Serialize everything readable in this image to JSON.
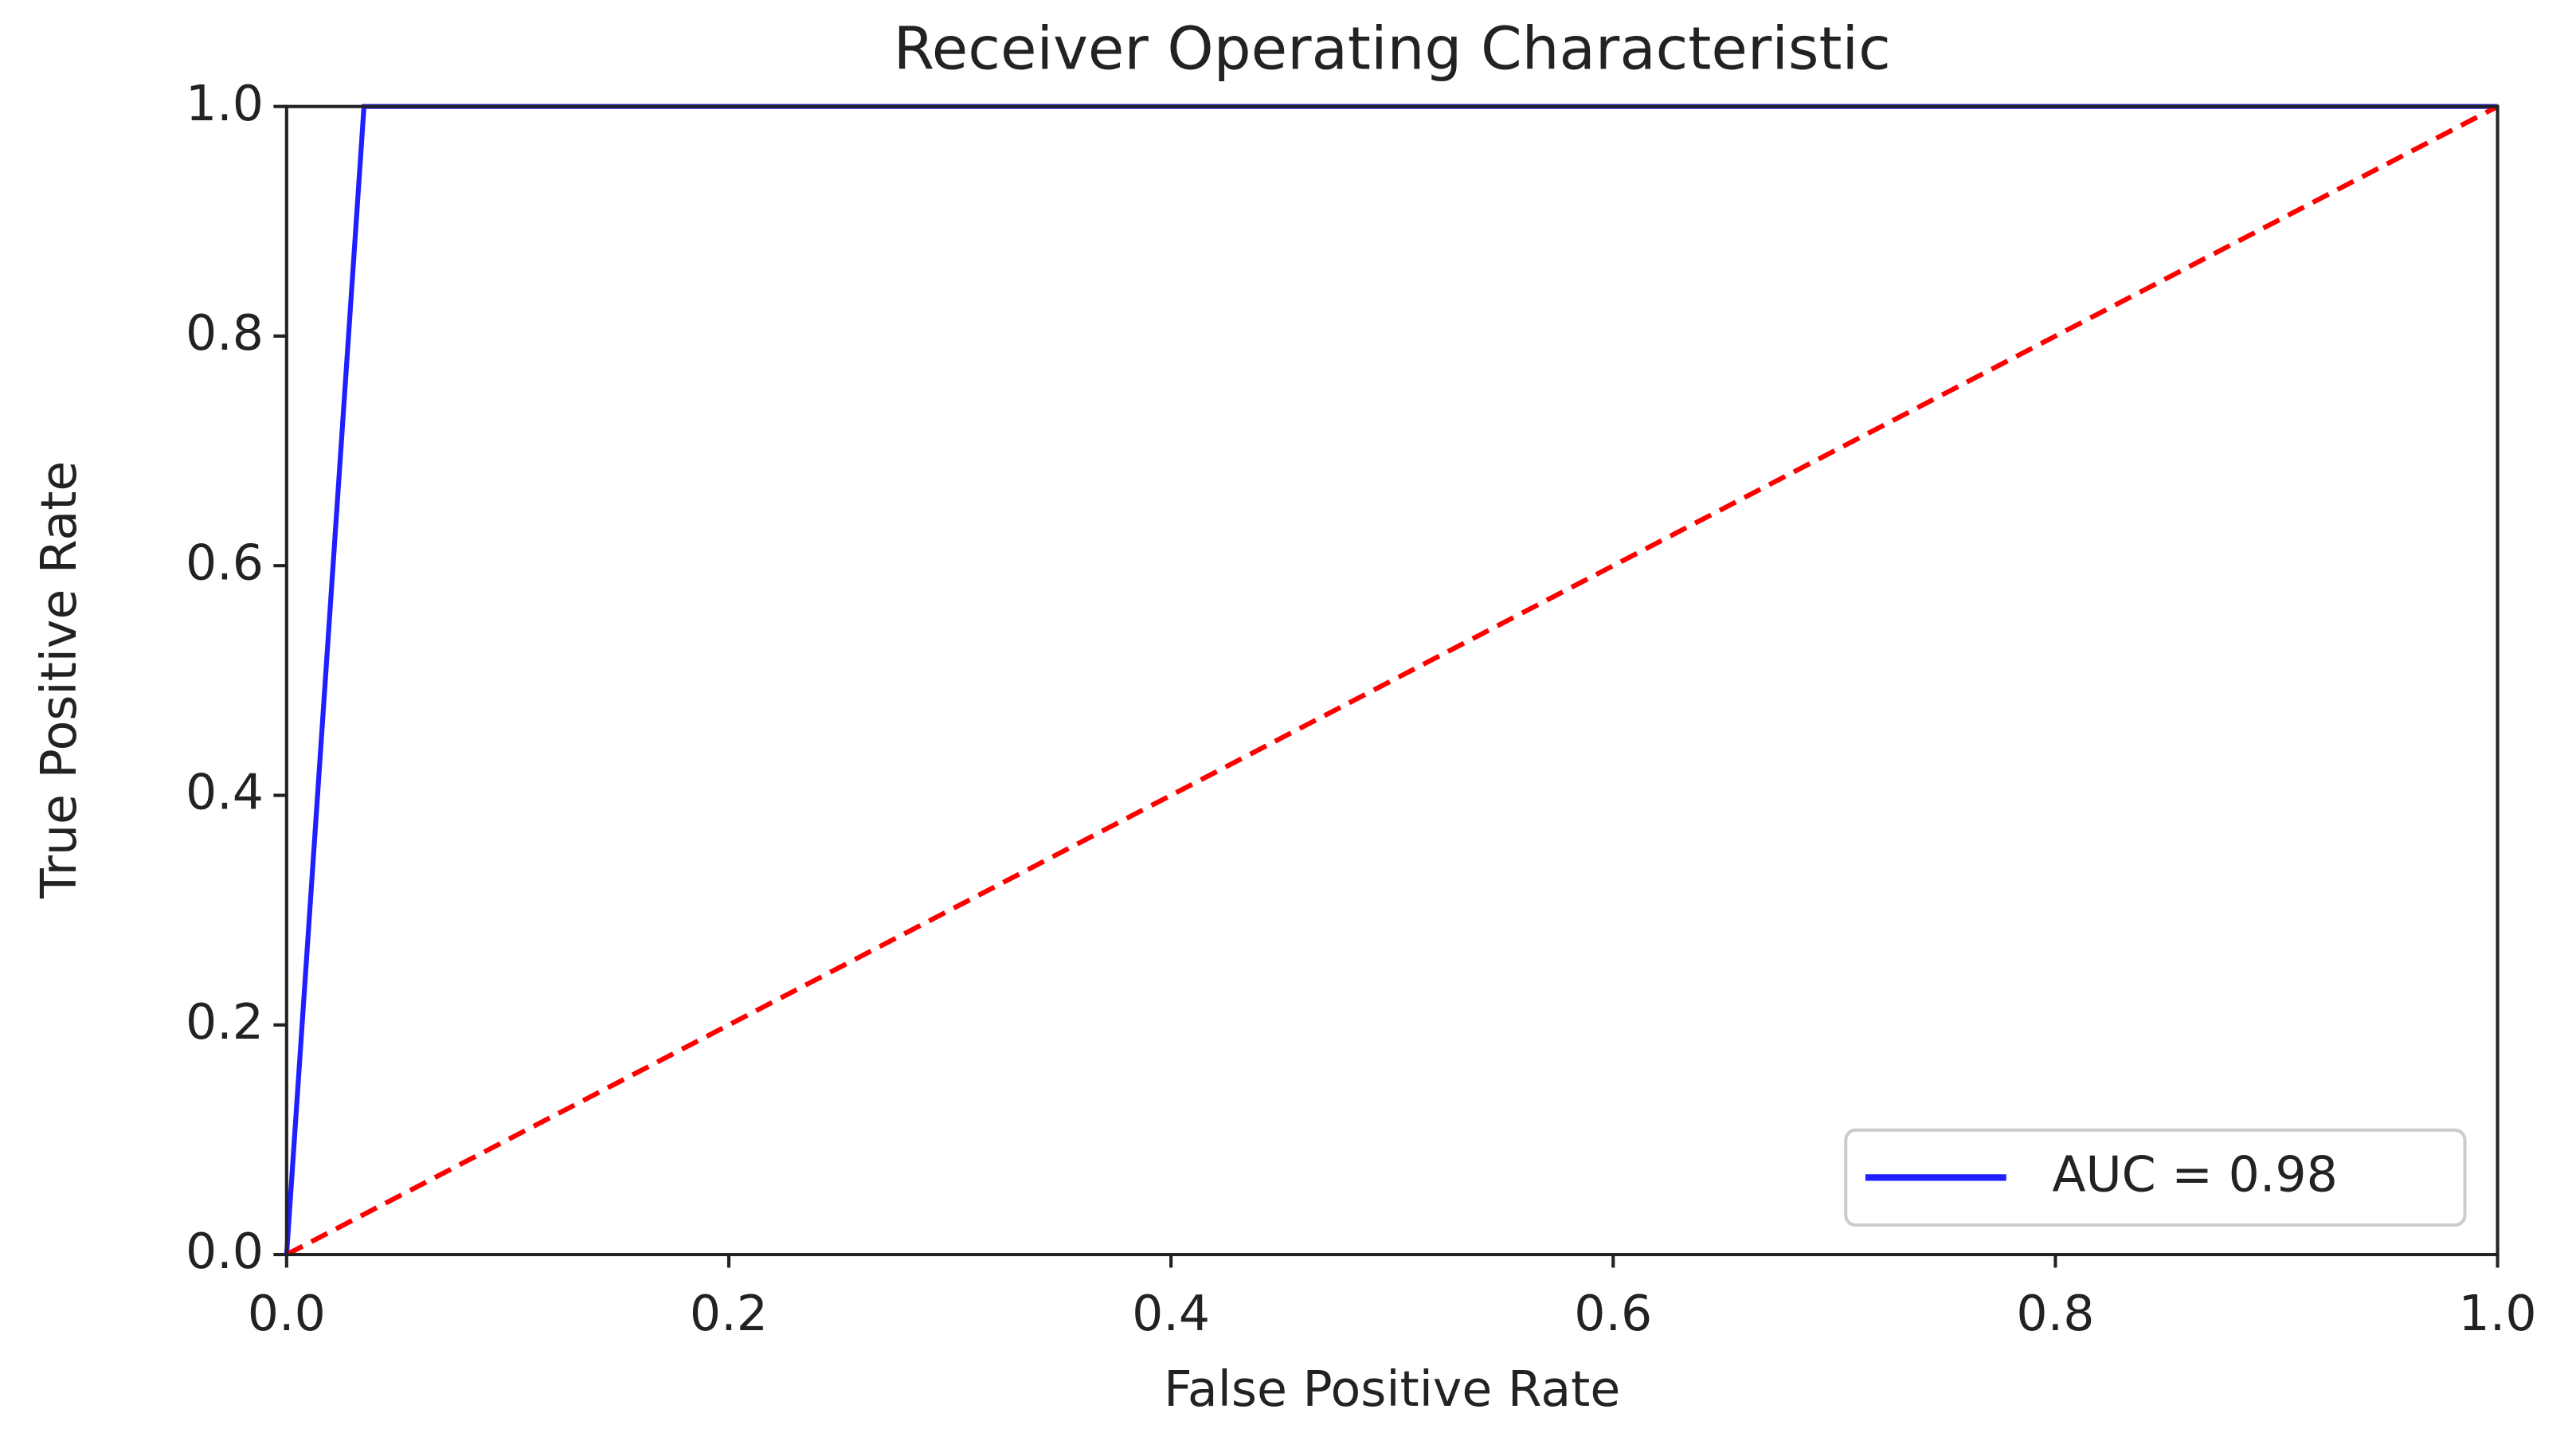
{
  "chart_data": {
    "type": "line",
    "title": "Receiver Operating Characteristic",
    "x_label": "False Positive Rate",
    "y_label": "True Positive Rate",
    "series": [
      {
        "name": "AUC = 0.98",
        "color": "#1f1fff",
        "style": "solid",
        "x": [
          0,
          0.035,
          1
        ],
        "values": [
          0,
          1,
          1
        ]
      },
      {
        "color": "#ff0000",
        "style": "dashed",
        "x": [
          0,
          1
        ],
        "values": [
          0,
          1
        ]
      }
    ],
    "xlim": [
      0,
      1
    ],
    "ylim": [
      0,
      1
    ],
    "xticks": [
      {
        "value": 0,
        "label": "0.0"
      },
      0.2,
      0.4,
      0.6,
      0.8,
      {
        "value": 1,
        "label": "1.0"
      }
    ],
    "yticks": [
      {
        "value": 0,
        "label": "0.0"
      },
      0.2,
      0.4,
      0.6,
      0.8,
      {
        "value": 1,
        "label": "1.0"
      }
    ],
    "grid": false,
    "legend": "lower right"
  }
}
